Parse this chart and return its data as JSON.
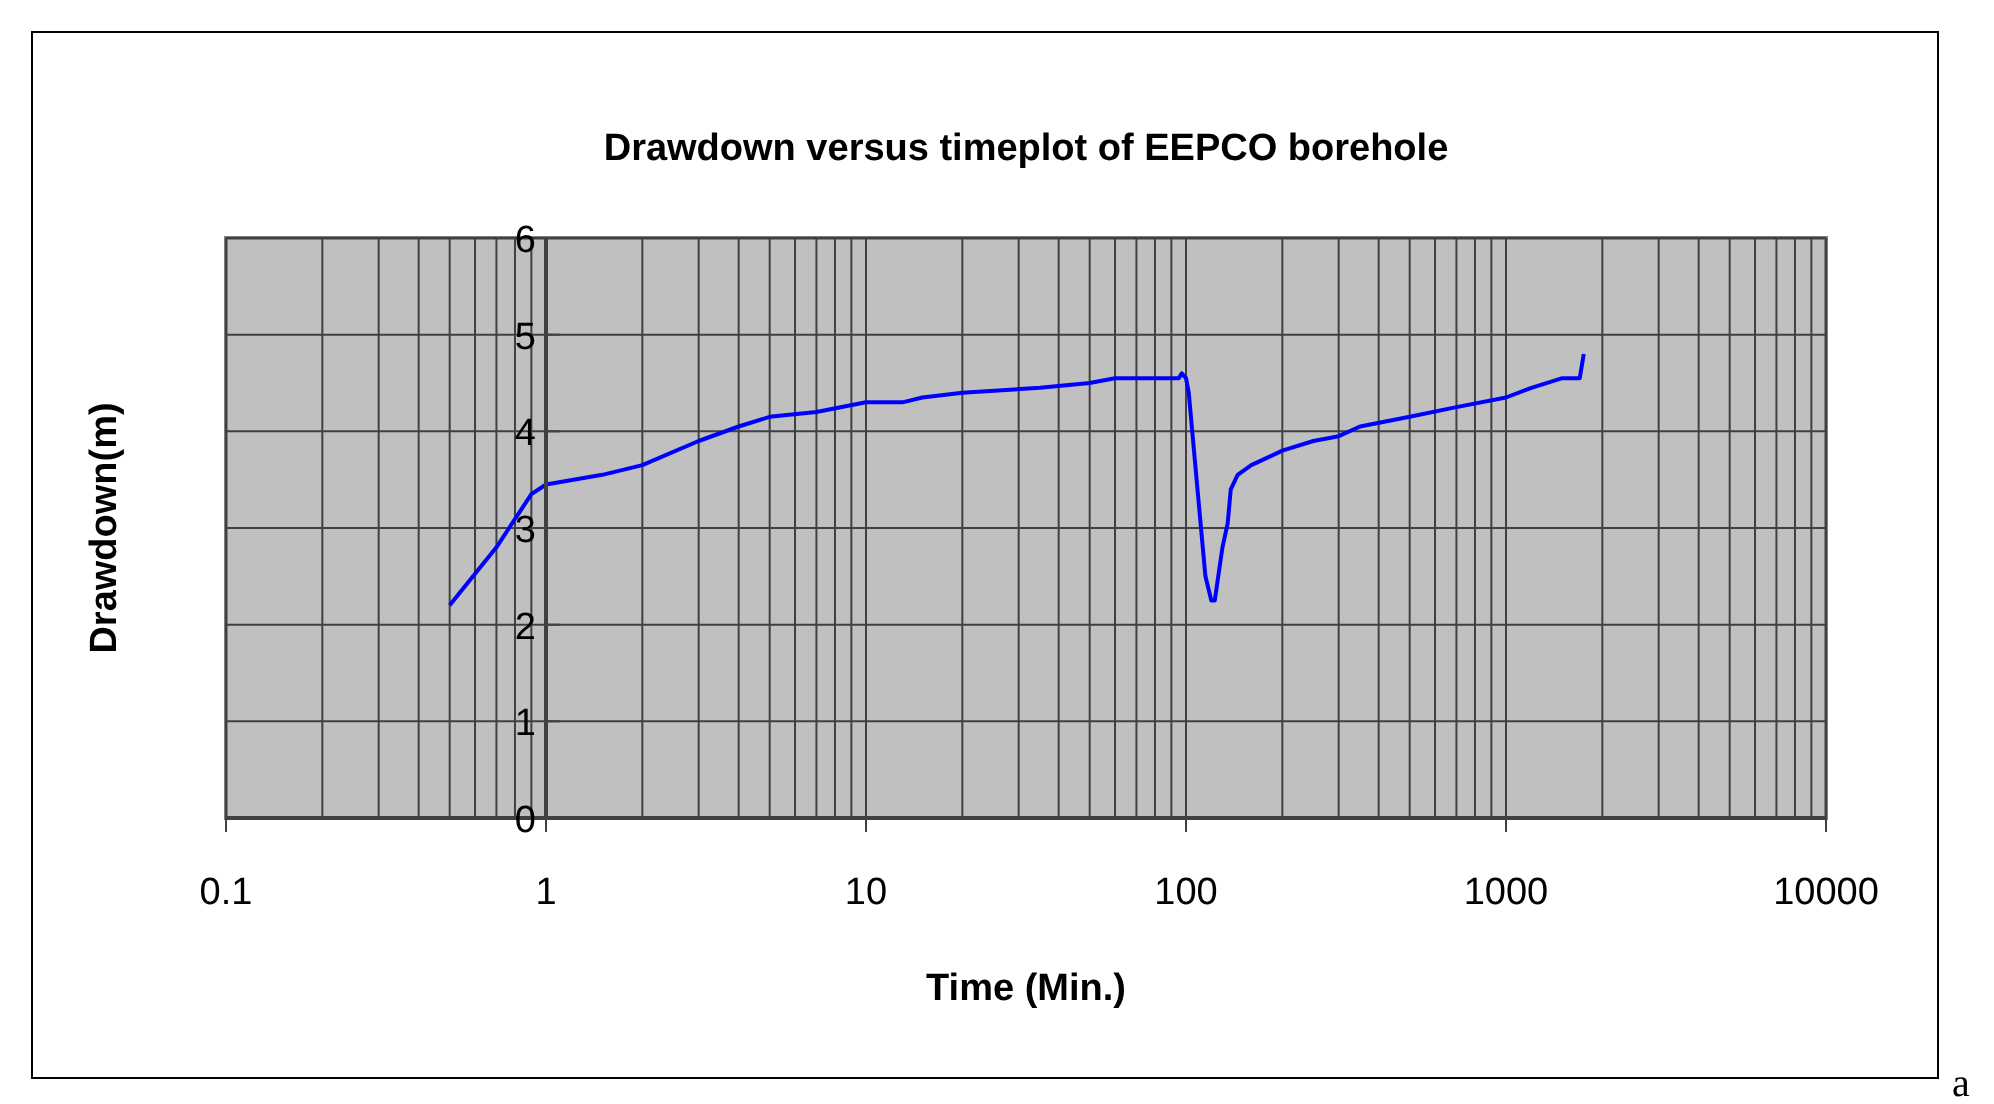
{
  "chart_data": {
    "type": "line",
    "title": "Drawdown versus timeplot of EEPCO borehole",
    "xlabel": "Time (Min.)",
    "ylabel": "Drawdown(m)",
    "log": "x",
    "grid": true,
    "xlim": [
      0.1,
      10000
    ],
    "xticks": [
      0.1,
      1,
      10,
      100,
      1000,
      10000
    ],
    "ylim": [
      0,
      6
    ],
    "yticks": [
      0,
      1,
      2,
      3,
      4,
      5,
      6
    ],
    "annotations": [
      "a"
    ],
    "series": [
      {
        "color": "#0000ff",
        "x": [
          0.5,
          0.7,
          0.9,
          1,
          1.5,
          2,
          3,
          4,
          5,
          7,
          10,
          13,
          15,
          20,
          35,
          50,
          60,
          95,
          97,
          100,
          102,
          110,
          115,
          120,
          123,
          130,
          135,
          138,
          145,
          160,
          200,
          250,
          300,
          350,
          500,
          700,
          1000,
          1200,
          1500,
          1700,
          1750
        ],
        "values": [
          2.2,
          2.8,
          3.35,
          3.45,
          3.55,
          3.65,
          3.9,
          4.05,
          4.15,
          4.2,
          4.3,
          4.3,
          4.35,
          4.4,
          4.45,
          4.5,
          4.55,
          4.55,
          4.6,
          4.55,
          4.4,
          3.2,
          2.5,
          2.25,
          2.25,
          2.8,
          3.05,
          3.4,
          3.55,
          3.65,
          3.8,
          3.9,
          3.95,
          4.05,
          4.15,
          4.25,
          4.35,
          4.45,
          4.55,
          4.55,
          4.8
        ]
      }
    ]
  }
}
